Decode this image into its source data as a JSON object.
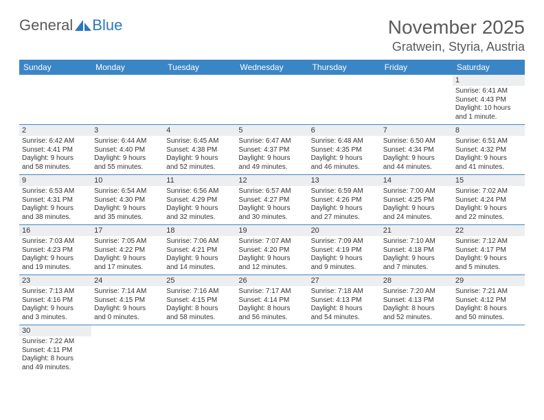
{
  "logo": {
    "text_a": "General",
    "text_b": "Blue"
  },
  "title": "November 2025",
  "location": "Gratwein, Styria, Austria",
  "colors": {
    "header_bg": "#3a85c6",
    "header_fg": "#ffffff",
    "daynum_bg": "#eceeef",
    "border": "#3a85c6",
    "title_color": "#5a5a5a",
    "logo_dark": "#5a5a5a",
    "logo_blue": "#2a78bd"
  },
  "typography": {
    "title_fontsize": 28,
    "location_fontsize": 18,
    "header_fontsize": 12,
    "daynum_fontsize": 11,
    "cell_fontsize": 10
  },
  "weekdays": [
    "Sunday",
    "Monday",
    "Tuesday",
    "Wednesday",
    "Thursday",
    "Friday",
    "Saturday"
  ],
  "weeks": [
    [
      null,
      null,
      null,
      null,
      null,
      null,
      {
        "n": "1",
        "sr": "Sunrise: 6:41 AM",
        "ss": "Sunset: 4:43 PM",
        "d1": "Daylight: 10 hours",
        "d2": "and 1 minute."
      }
    ],
    [
      {
        "n": "2",
        "sr": "Sunrise: 6:42 AM",
        "ss": "Sunset: 4:41 PM",
        "d1": "Daylight: 9 hours",
        "d2": "and 58 minutes."
      },
      {
        "n": "3",
        "sr": "Sunrise: 6:44 AM",
        "ss": "Sunset: 4:40 PM",
        "d1": "Daylight: 9 hours",
        "d2": "and 55 minutes."
      },
      {
        "n": "4",
        "sr": "Sunrise: 6:45 AM",
        "ss": "Sunset: 4:38 PM",
        "d1": "Daylight: 9 hours",
        "d2": "and 52 minutes."
      },
      {
        "n": "5",
        "sr": "Sunrise: 6:47 AM",
        "ss": "Sunset: 4:37 PM",
        "d1": "Daylight: 9 hours",
        "d2": "and 49 minutes."
      },
      {
        "n": "6",
        "sr": "Sunrise: 6:48 AM",
        "ss": "Sunset: 4:35 PM",
        "d1": "Daylight: 9 hours",
        "d2": "and 46 minutes."
      },
      {
        "n": "7",
        "sr": "Sunrise: 6:50 AM",
        "ss": "Sunset: 4:34 PM",
        "d1": "Daylight: 9 hours",
        "d2": "and 44 minutes."
      },
      {
        "n": "8",
        "sr": "Sunrise: 6:51 AM",
        "ss": "Sunset: 4:32 PM",
        "d1": "Daylight: 9 hours",
        "d2": "and 41 minutes."
      }
    ],
    [
      {
        "n": "9",
        "sr": "Sunrise: 6:53 AM",
        "ss": "Sunset: 4:31 PM",
        "d1": "Daylight: 9 hours",
        "d2": "and 38 minutes."
      },
      {
        "n": "10",
        "sr": "Sunrise: 6:54 AM",
        "ss": "Sunset: 4:30 PM",
        "d1": "Daylight: 9 hours",
        "d2": "and 35 minutes."
      },
      {
        "n": "11",
        "sr": "Sunrise: 6:56 AM",
        "ss": "Sunset: 4:29 PM",
        "d1": "Daylight: 9 hours",
        "d2": "and 32 minutes."
      },
      {
        "n": "12",
        "sr": "Sunrise: 6:57 AM",
        "ss": "Sunset: 4:27 PM",
        "d1": "Daylight: 9 hours",
        "d2": "and 30 minutes."
      },
      {
        "n": "13",
        "sr": "Sunrise: 6:59 AM",
        "ss": "Sunset: 4:26 PM",
        "d1": "Daylight: 9 hours",
        "d2": "and 27 minutes."
      },
      {
        "n": "14",
        "sr": "Sunrise: 7:00 AM",
        "ss": "Sunset: 4:25 PM",
        "d1": "Daylight: 9 hours",
        "d2": "and 24 minutes."
      },
      {
        "n": "15",
        "sr": "Sunrise: 7:02 AM",
        "ss": "Sunset: 4:24 PM",
        "d1": "Daylight: 9 hours",
        "d2": "and 22 minutes."
      }
    ],
    [
      {
        "n": "16",
        "sr": "Sunrise: 7:03 AM",
        "ss": "Sunset: 4:23 PM",
        "d1": "Daylight: 9 hours",
        "d2": "and 19 minutes."
      },
      {
        "n": "17",
        "sr": "Sunrise: 7:05 AM",
        "ss": "Sunset: 4:22 PM",
        "d1": "Daylight: 9 hours",
        "d2": "and 17 minutes."
      },
      {
        "n": "18",
        "sr": "Sunrise: 7:06 AM",
        "ss": "Sunset: 4:21 PM",
        "d1": "Daylight: 9 hours",
        "d2": "and 14 minutes."
      },
      {
        "n": "19",
        "sr": "Sunrise: 7:07 AM",
        "ss": "Sunset: 4:20 PM",
        "d1": "Daylight: 9 hours",
        "d2": "and 12 minutes."
      },
      {
        "n": "20",
        "sr": "Sunrise: 7:09 AM",
        "ss": "Sunset: 4:19 PM",
        "d1": "Daylight: 9 hours",
        "d2": "and 9 minutes."
      },
      {
        "n": "21",
        "sr": "Sunrise: 7:10 AM",
        "ss": "Sunset: 4:18 PM",
        "d1": "Daylight: 9 hours",
        "d2": "and 7 minutes."
      },
      {
        "n": "22",
        "sr": "Sunrise: 7:12 AM",
        "ss": "Sunset: 4:17 PM",
        "d1": "Daylight: 9 hours",
        "d2": "and 5 minutes."
      }
    ],
    [
      {
        "n": "23",
        "sr": "Sunrise: 7:13 AM",
        "ss": "Sunset: 4:16 PM",
        "d1": "Daylight: 9 hours",
        "d2": "and 3 minutes."
      },
      {
        "n": "24",
        "sr": "Sunrise: 7:14 AM",
        "ss": "Sunset: 4:15 PM",
        "d1": "Daylight: 9 hours",
        "d2": "and 0 minutes."
      },
      {
        "n": "25",
        "sr": "Sunrise: 7:16 AM",
        "ss": "Sunset: 4:15 PM",
        "d1": "Daylight: 8 hours",
        "d2": "and 58 minutes."
      },
      {
        "n": "26",
        "sr": "Sunrise: 7:17 AM",
        "ss": "Sunset: 4:14 PM",
        "d1": "Daylight: 8 hours",
        "d2": "and 56 minutes."
      },
      {
        "n": "27",
        "sr": "Sunrise: 7:18 AM",
        "ss": "Sunset: 4:13 PM",
        "d1": "Daylight: 8 hours",
        "d2": "and 54 minutes."
      },
      {
        "n": "28",
        "sr": "Sunrise: 7:20 AM",
        "ss": "Sunset: 4:13 PM",
        "d1": "Daylight: 8 hours",
        "d2": "and 52 minutes."
      },
      {
        "n": "29",
        "sr": "Sunrise: 7:21 AM",
        "ss": "Sunset: 4:12 PM",
        "d1": "Daylight: 8 hours",
        "d2": "and 50 minutes."
      }
    ],
    [
      {
        "n": "30",
        "sr": "Sunrise: 7:22 AM",
        "ss": "Sunset: 4:11 PM",
        "d1": "Daylight: 8 hours",
        "d2": "and 49 minutes."
      },
      null,
      null,
      null,
      null,
      null,
      null
    ]
  ]
}
